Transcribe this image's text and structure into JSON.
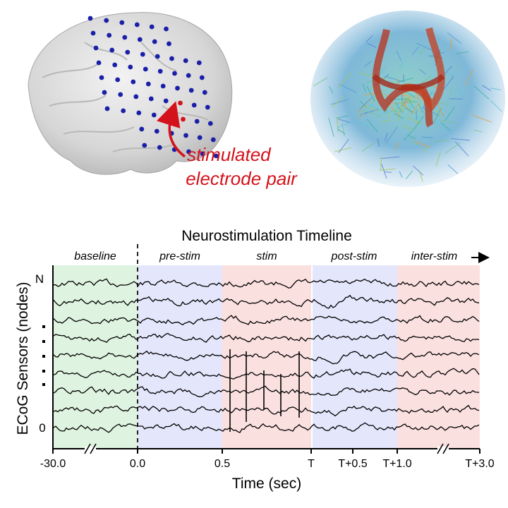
{
  "brain_figure": {
    "annotation": "stimulated\nelectrode pair",
    "electrode_color": "#1a1fa8",
    "stimulated_color": "#d4121b"
  },
  "timeline": {
    "title": "Neurostimulation Timeline",
    "ylabel": "ECoG Sensors (nodes)",
    "xlabel": "Time (sec)",
    "node_top_label": "N",
    "node_bottom_label": "0",
    "phases": [
      {
        "label": "baseline",
        "color": "#dff3e1"
      },
      {
        "label": "pre-stim",
        "color": "#e4e6fb"
      },
      {
        "label": "stim",
        "color": "#fbe0e0"
      },
      {
        "label": "post-stim",
        "color": "#e4e6fb"
      },
      {
        "label": "inter-stim",
        "color": "#fbe0e0"
      }
    ],
    "x_ticks": [
      "-30.0",
      "0.0",
      "0.5",
      "T",
      "T+0.5",
      "T+1.0",
      "T+3.0"
    ],
    "axis_break_marker": "//"
  }
}
